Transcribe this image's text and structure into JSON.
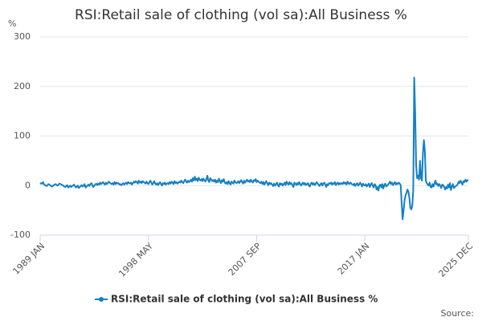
{
  "chart_data": {
    "type": "line",
    "title": "RSI:Retail sale of clothing (vol sa):All Business %",
    "y_label": "%",
    "source": "Source:",
    "ylim": [
      -100,
      300
    ],
    "yticks": [
      -100,
      0,
      100,
      200,
      300
    ],
    "grid": true,
    "categories": [
      "1989 JAN",
      null,
      null,
      null,
      null,
      null,
      null,
      null,
      null,
      null,
      null,
      null,
      null,
      null,
      null,
      null,
      null,
      null,
      null,
      null,
      null,
      null,
      null,
      null,
      null,
      null,
      null,
      null,
      null,
      null,
      null,
      null,
      null,
      null,
      null,
      null,
      null,
      null,
      null,
      null,
      null,
      null,
      null,
      null,
      null,
      null,
      null,
      null,
      null,
      null,
      null,
      null,
      null,
      null,
      null,
      null,
      null,
      null,
      null,
      null,
      null,
      null,
      null,
      null,
      null,
      null,
      null,
      null,
      null,
      null,
      null,
      null,
      null,
      null,
      null,
      null,
      null,
      null,
      null,
      null,
      null,
      null,
      null,
      null,
      null,
      null,
      null,
      null,
      null,
      null,
      null,
      null,
      null,
      null,
      null,
      null,
      null,
      null,
      null,
      null,
      null,
      null,
      null,
      null,
      null,
      null,
      null,
      null,
      null,
      null,
      null,
      null,
      "1998 MAY",
      null,
      null,
      null,
      null,
      null,
      null,
      null,
      null,
      null,
      null,
      null,
      null,
      null,
      null,
      null,
      null,
      null,
      null,
      null,
      null,
      null,
      null,
      null,
      null,
      null,
      null,
      null,
      null,
      null,
      null,
      null,
      null,
      null,
      null,
      null,
      null,
      null,
      null,
      null,
      null,
      null,
      null,
      null,
      null,
      null,
      null,
      null,
      null,
      null,
      null,
      null,
      null,
      null,
      null,
      null,
      null,
      null,
      null,
      null,
      null,
      null,
      null,
      null,
      null,
      null,
      null,
      null,
      null,
      null,
      null,
      null,
      null,
      null,
      null,
      null,
      null,
      null,
      null,
      null,
      null,
      null,
      null,
      null,
      null,
      null,
      null,
      null,
      null,
      null,
      null,
      null,
      null,
      null,
      null,
      null,
      null,
      null,
      null,
      null,
      null,
      null,
      null,
      null,
      null,
      null,
      null,
      null,
      null,
      null,
      null,
      null,
      "2007 SEP",
      null,
      null,
      null,
      null,
      null,
      null,
      null,
      null,
      null,
      null,
      null,
      null,
      null,
      null,
      null,
      null,
      null,
      null,
      null,
      null,
      null,
      null,
      null,
      null,
      null,
      null,
      null,
      null,
      null,
      null,
      null,
      null,
      null,
      null,
      null,
      null,
      null,
      null,
      null,
      null,
      null,
      null,
      null,
      null,
      null,
      null,
      null,
      null,
      null,
      null,
      null,
      null,
      null,
      null,
      null,
      null,
      null,
      null,
      null,
      null,
      null,
      null,
      null,
      null,
      null,
      null,
      null,
      null,
      null,
      null,
      null,
      null,
      null,
      null,
      null,
      null,
      null,
      null,
      null,
      null,
      null,
      null,
      null,
      null,
      null,
      null,
      null,
      null,
      null,
      null,
      null,
      null,
      null,
      null,
      null,
      null,
      null,
      null,
      null,
      null,
      null,
      null,
      null,
      null,
      null,
      null,
      null,
      null,
      null,
      null,
      null,
      "2017 JAN",
      null,
      null,
      null,
      null,
      null,
      null,
      null,
      null,
      null,
      null,
      null,
      null,
      null,
      null,
      null,
      null,
      null,
      null,
      null,
      null,
      null,
      null,
      null,
      null,
      null,
      null,
      null,
      null,
      null,
      null,
      null,
      null,
      null,
      null,
      null,
      null,
      null,
      null,
      null,
      null,
      null,
      null,
      null,
      null,
      null,
      null,
      null,
      null,
      null,
      null,
      null,
      null,
      null,
      null,
      null,
      null,
      null,
      null,
      null,
      null,
      null,
      null,
      null,
      null,
      null,
      null,
      null,
      null,
      null,
      null,
      null,
      null,
      null,
      null,
      null,
      null,
      null,
      null,
      null,
      null,
      null,
      null,
      null,
      null,
      null,
      null,
      null,
      null,
      null,
      null,
      null,
      null,
      null,
      null,
      null,
      null,
      null,
      null,
      null,
      null,
      null,
      null,
      null,
      null,
      null,
      null,
      "2025 DEC"
    ],
    "series": [
      {
        "name": "RSI:Retail sale of clothing (vol sa):All Business %",
        "color": "#1380c4",
        "values": [
          3,
          5,
          4,
          7,
          2,
          1,
          0,
          -1,
          2,
          3,
          1,
          0,
          -2,
          -1,
          1,
          2,
          3,
          1,
          0,
          2,
          4,
          3,
          2,
          1,
          0,
          -2,
          -3,
          -1,
          1,
          -4,
          -2,
          0,
          -3,
          -1,
          0,
          2,
          -1,
          -4,
          -2,
          0,
          -5,
          -3,
          -1,
          1,
          -2,
          0,
          3,
          -4,
          -2,
          0,
          2,
          -1,
          3,
          5,
          1,
          -3,
          0,
          2,
          4,
          1,
          4,
          2,
          6,
          3,
          5,
          7,
          4,
          2,
          6,
          3,
          5,
          8,
          6,
          4,
          3,
          5,
          2,
          7,
          3,
          6,
          4,
          5,
          2,
          3,
          1,
          3,
          5,
          2,
          4,
          6,
          3,
          7,
          5,
          4,
          6,
          2,
          5,
          8,
          6,
          9,
          7,
          4,
          10,
          6,
          8,
          5,
          9,
          7,
          6,
          4,
          8,
          5,
          3,
          7,
          10,
          6,
          2,
          5,
          9,
          4,
          2,
          5,
          1,
          4,
          7,
          3,
          0,
          5,
          3,
          6,
          2,
          4,
          5,
          3,
          7,
          4,
          8,
          6,
          3,
          9,
          5,
          7,
          4,
          6,
          8,
          6,
          10,
          7,
          5,
          9,
          12,
          8,
          6,
          10,
          7,
          9,
          12,
          8,
          15,
          10,
          18,
          11,
          14,
          9,
          16,
          12,
          10,
          13,
          9,
          14,
          11,
          8,
          13,
          20,
          10,
          7,
          15,
          12,
          9,
          11,
          8,
          12,
          6,
          10,
          7,
          14,
          9,
          5,
          11,
          8,
          13,
          6,
          4,
          7,
          3,
          9,
          5,
          2,
          8,
          6,
          4,
          10,
          7,
          5,
          6,
          9,
          5,
          8,
          11,
          7,
          4,
          10,
          6,
          9,
          12,
          8,
          10,
          7,
          12,
          8,
          6,
          11,
          9,
          13,
          7,
          10,
          8,
          6,
          5,
          8,
          3,
          7,
          2,
          6,
          9,
          4,
          1,
          6,
          3,
          5,
          2,
          -1,
          4,
          0,
          3,
          6,
          1,
          -2,
          5,
          2,
          4,
          0,
          3,
          6,
          1,
          8,
          4,
          2,
          7,
          3,
          5,
          1,
          -3,
          6,
          4,
          1,
          5,
          2,
          7,
          3,
          0,
          4,
          6,
          2,
          5,
          1,
          3,
          5,
          0,
          -2,
          4,
          6,
          2,
          5,
          1,
          3,
          7,
          4,
          2,
          -1,
          3,
          5,
          0,
          4,
          6,
          2,
          -3,
          3,
          1,
          5,
          4,
          6,
          2,
          5,
          3,
          7,
          1,
          4,
          6,
          2,
          5,
          3,
          5,
          3,
          7,
          4,
          6,
          2,
          8,
          5,
          3,
          6,
          4,
          2,
          1,
          4,
          -1,
          3,
          5,
          0,
          2,
          6,
          3,
          -2,
          4,
          1,
          0,
          3,
          -2,
          1,
          4,
          -3,
          2,
          5,
          0,
          -4,
          3,
          1,
          -8,
          -3,
          -10,
          0,
          2,
          -4,
          3,
          -6,
          1,
          4,
          -2,
          0,
          2,
          5,
          8,
          3,
          6,
          1,
          4,
          7,
          2,
          5,
          3,
          6,
          4,
          1,
          -35,
          -68,
          -50,
          -30,
          -20,
          -15,
          -8,
          -12,
          -25,
          -45,
          -48,
          -40,
          -10,
          218,
          145,
          40,
          15,
          20,
          12,
          50,
          15,
          10,
          65,
          92,
          70,
          10,
          5,
          2,
          0,
          6,
          -3,
          -4,
          3,
          -2,
          5,
          10,
          2,
          4,
          -1,
          3,
          0,
          -5,
          2,
          1,
          -3,
          -8,
          -3,
          -6,
          2,
          -4,
          5,
          -9,
          -2,
          3,
          -5,
          -3,
          -1,
          0,
          3,
          8,
          5,
          10,
          6,
          2,
          9,
          7,
          12,
          8,
          11,
          10
        ]
      }
    ]
  }
}
